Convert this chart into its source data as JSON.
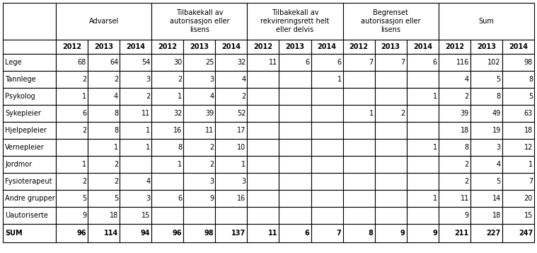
{
  "col_groups": [
    {
      "label": "Advarsel"
    },
    {
      "label": "Tilbakekall av\nautorisasjon eller\nlisens"
    },
    {
      "label": "Tilbakekall av\nrekvireringsrett helt\neller delvis"
    },
    {
      "label": "Begrenset\nautorisasjon eller\nlisens"
    },
    {
      "label": "Sum"
    }
  ],
  "rows": [
    {
      "label": "Lege",
      "values": [
        "68",
        "64",
        "54",
        "30",
        "25",
        "32",
        "11",
        "6",
        "6",
        "7",
        "7",
        "6",
        "116",
        "102",
        "98"
      ]
    },
    {
      "label": "Tannlege",
      "values": [
        "2",
        "2",
        "3",
        "2",
        "3",
        "4",
        "",
        "",
        "1",
        "",
        "",
        "",
        "4",
        "5",
        "8"
      ]
    },
    {
      "label": "Psykolog",
      "values": [
        "1",
        "4",
        "2",
        "1",
        "4",
        "2",
        "",
        "",
        "",
        "",
        "",
        "1",
        "2",
        "8",
        "5"
      ]
    },
    {
      "label": "Sykepleier",
      "values": [
        "6",
        "8",
        "11",
        "32",
        "39",
        "52",
        "",
        "",
        "",
        "1",
        "2",
        "",
        "39",
        "49",
        "63"
      ]
    },
    {
      "label": "Hjelpepleier",
      "values": [
        "2",
        "8",
        "1",
        "16",
        "11",
        "17",
        "",
        "",
        "",
        "",
        "",
        "",
        "18",
        "19",
        "18"
      ]
    },
    {
      "label": "Vernepleier",
      "values": [
        "",
        "1",
        "1",
        "8",
        "2",
        "10",
        "",
        "",
        "",
        "",
        "",
        "1",
        "8",
        "3",
        "12"
      ]
    },
    {
      "label": "Jordmor",
      "values": [
        "1",
        "2",
        "",
        "1",
        "2",
        "1",
        "",
        "",
        "",
        "",
        "",
        "",
        "2",
        "4",
        "1"
      ]
    },
    {
      "label": "Fysioterapeut",
      "values": [
        "2",
        "2",
        "4",
        "",
        "3",
        "3",
        "",
        "",
        "",
        "",
        "",
        "",
        "2",
        "5",
        "7"
      ]
    },
    {
      "label": "Andre grupper",
      "values": [
        "5",
        "5",
        "3",
        "6",
        "9",
        "16",
        "",
        "",
        "",
        "",
        "",
        "1",
        "11",
        "14",
        "20"
      ]
    },
    {
      "label": "Uautoriserte",
      "values": [
        "9",
        "18",
        "15",
        "",
        "",
        "",
        "",
        "",
        "",
        "",
        "",
        "",
        "9",
        "18",
        "15"
      ]
    }
  ],
  "sum_row": {
    "label": "SUM",
    "values": [
      "96",
      "114",
      "94",
      "96",
      "98",
      "137",
      "11",
      "6",
      "7",
      "8",
      "9",
      "9",
      "211",
      "227",
      "247"
    ]
  },
  "border_color": "#000000",
  "font_size": 7.0,
  "header_font_size": 7.0
}
